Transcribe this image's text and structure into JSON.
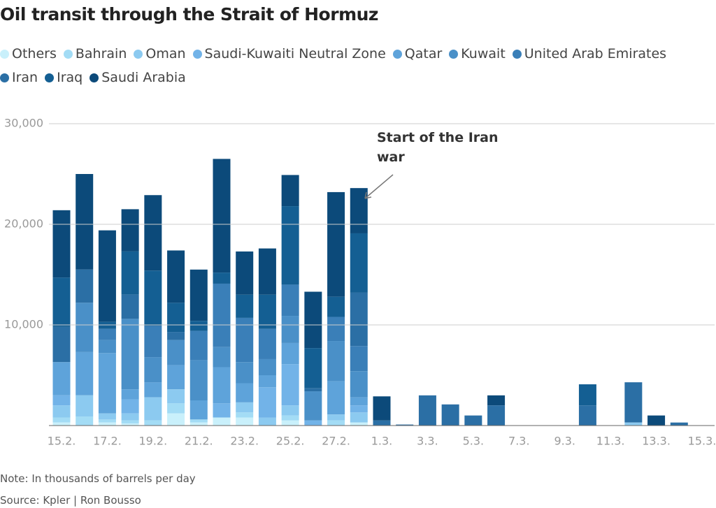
{
  "chart_data": {
    "type": "stacked-bar",
    "title": "Oil transit through the Strait of Hormuz",
    "categories": [
      "15.2.",
      null,
      "17.2.",
      null,
      "19.2.",
      null,
      "21.2.",
      null,
      "23.2.",
      null,
      "25.2.",
      null,
      "27.2.",
      null,
      "1.3.",
      null,
      "3.3.",
      null,
      "5.3.",
      null,
      "7.3.",
      null,
      "9.3.",
      null,
      "11.3.",
      null,
      "13.3.",
      null,
      "15.3."
    ],
    "series": [
      {
        "name": "Others",
        "color": "#c9f0fb",
        "values": [
          300,
          0,
          300,
          200,
          0,
          1200,
          300,
          800,
          800,
          0,
          500,
          0,
          0,
          300,
          0,
          0,
          0,
          0,
          0,
          0,
          0,
          0,
          0,
          0,
          0,
          0,
          0,
          0,
          0
        ]
      },
      {
        "name": "Bahrain",
        "color": "#a3dcf5",
        "values": [
          500,
          900,
          300,
          300,
          500,
          1000,
          300,
          0,
          500,
          0,
          500,
          0,
          500,
          0,
          0,
          0,
          0,
          0,
          0,
          0,
          0,
          0,
          0,
          0,
          0,
          0,
          0,
          0,
          0
        ]
      },
      {
        "name": "Oman",
        "color": "#8ccaf0",
        "values": [
          1200,
          2100,
          600,
          700,
          2300,
          1400,
          0,
          0,
          1000,
          800,
          1000,
          0,
          600,
          1000,
          0,
          0,
          0,
          0,
          0,
          0,
          0,
          0,
          0,
          0,
          0,
          300,
          0,
          0,
          0
        ]
      },
      {
        "name": "Saudi-Kuwaiti Neutral Zone",
        "color": "#72b3e8",
        "values": [
          1000,
          0,
          0,
          1400,
          0,
          0,
          0,
          1400,
          0,
          3000,
          4100,
          500,
          0,
          700,
          0,
          0,
          0,
          0,
          0,
          0,
          0,
          0,
          0,
          0,
          0,
          0,
          0,
          0,
          0
        ]
      },
      {
        "name": "Qatar",
        "color": "#5ea3da",
        "values": [
          3300,
          4300,
          6000,
          1000,
          1500,
          2400,
          1900,
          3600,
          1900,
          1200,
          2100,
          0,
          3300,
          800,
          0,
          0,
          0,
          0,
          0,
          0,
          0,
          0,
          0,
          0,
          0,
          0,
          0,
          0,
          0
        ]
      },
      {
        "name": "Kuwait",
        "color": "#4a90c8",
        "values": [
          0,
          4900,
          1300,
          7000,
          2500,
          2500,
          4000,
          2000,
          2100,
          1600,
          2700,
          2900,
          4000,
          2600,
          0,
          0,
          0,
          0,
          0,
          0,
          0,
          0,
          0,
          0,
          0,
          0,
          0,
          0,
          0
        ]
      },
      {
        "name": "United Arab Emirates",
        "color": "#3a7fb8",
        "values": [
          0,
          0,
          1100,
          0,
          3100,
          0,
          2900,
          6300,
          4400,
          3000,
          3100,
          0,
          2400,
          2500,
          0,
          0,
          0,
          0,
          0,
          0,
          0,
          0,
          0,
          0,
          0,
          0,
          0,
          0,
          0
        ]
      },
      {
        "name": "Iran",
        "color": "#2b6fa5",
        "values": [
          3500,
          3300,
          0,
          2400,
          0,
          800,
          0,
          0,
          0,
          0,
          0,
          300,
          0,
          5300,
          500,
          100,
          3000,
          2100,
          1000,
          2000,
          0,
          0,
          0,
          2000,
          0,
          4000,
          0,
          300,
          0
        ]
      },
      {
        "name": "Iraq",
        "color": "#145f93",
        "values": [
          4900,
          0,
          700,
          4300,
          5500,
          2900,
          1000,
          1100,
          2300,
          3400,
          7800,
          4000,
          2000,
          5900,
          0,
          0,
          0,
          0,
          0,
          0,
          0,
          0,
          0,
          2100,
          0,
          0,
          0,
          0,
          0
        ]
      },
      {
        "name": "Saudi Arabia",
        "color": "#0c4a7a",
        "values": [
          6700,
          9500,
          9100,
          4200,
          7500,
          5200,
          5100,
          11300,
          4300,
          4600,
          3100,
          5600,
          10400,
          4500,
          2400,
          0,
          0,
          0,
          0,
          1000,
          0,
          0,
          0,
          0,
          0,
          0,
          1000,
          0,
          0
        ]
      }
    ],
    "ylim": [
      0,
      30000
    ],
    "yticks": [
      {
        "value": 10000,
        "label": "10,000"
      },
      {
        "value": 20000,
        "label": "20,000"
      },
      {
        "value": 30000,
        "label": "30,000"
      }
    ],
    "grid": true,
    "annotation": "Start of the Iran war",
    "note": "Note: In thousands of barrels per day",
    "source": "Source: Kpler | Ron Bousso"
  }
}
